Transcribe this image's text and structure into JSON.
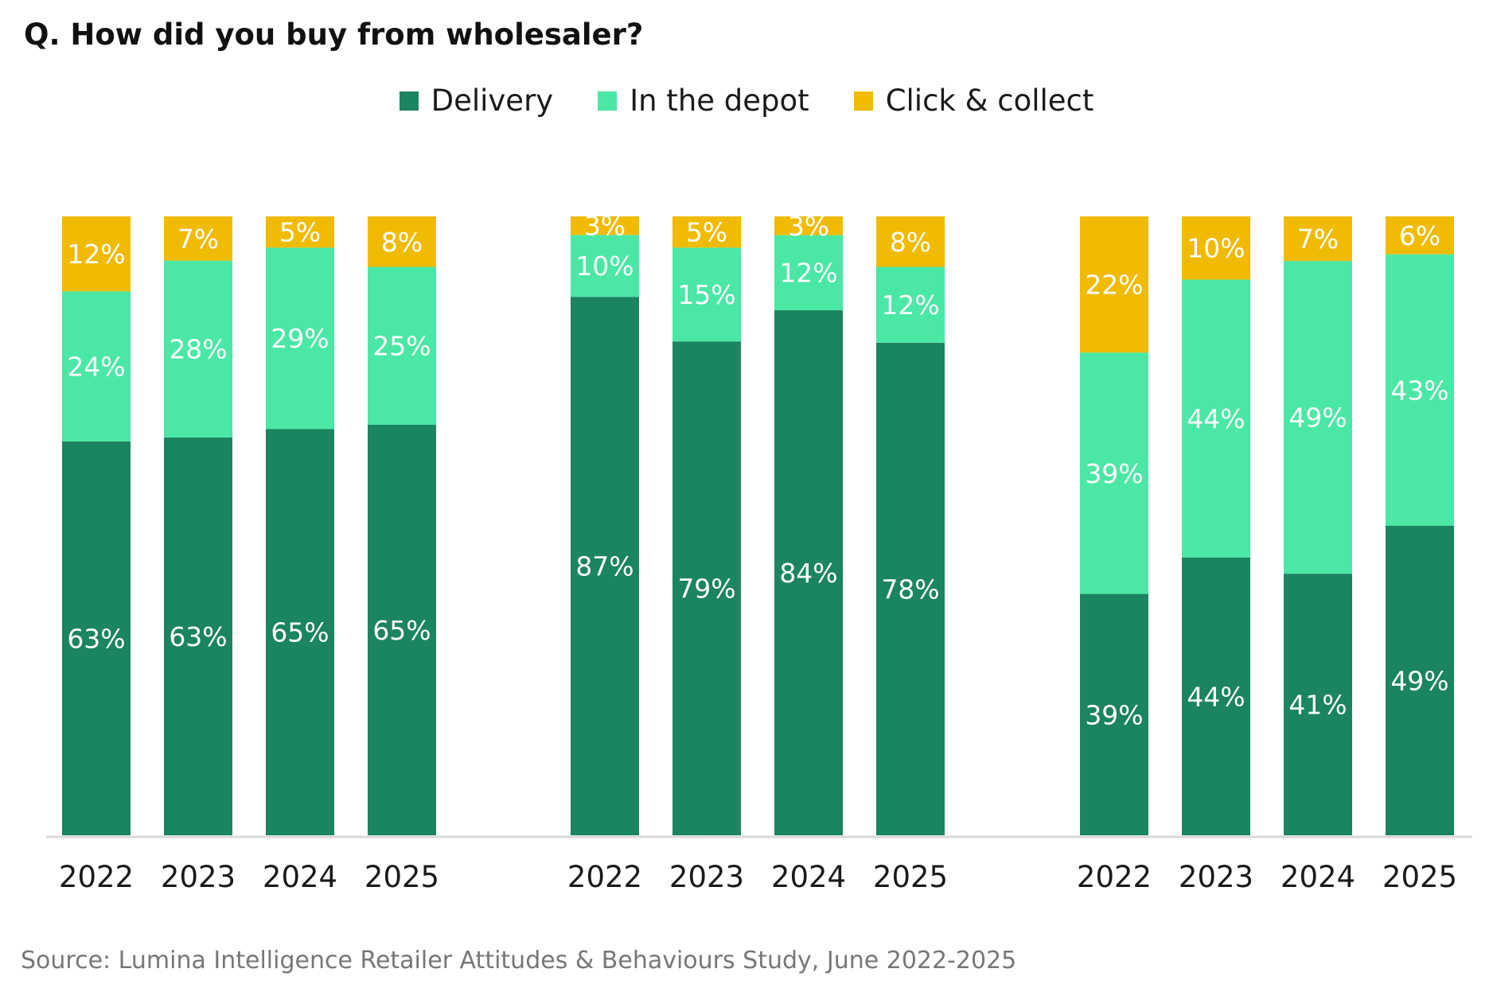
{
  "chart_data": {
    "type": "bar",
    "stacked": true,
    "title": "Q. How did you buy from wholesaler?",
    "source": "Source: Lumina Intelligence Retailer Attitudes & Behaviours Study, June 2022-2025",
    "legend_position": "top-center",
    "grid": false,
    "ylim": [
      0,
      100
    ],
    "unit": "%",
    "series": [
      {
        "name": "Delivery",
        "color": "#1b8460",
        "label_color": "#ffffff"
      },
      {
        "name": "In the depot",
        "color": "#4ae8a4",
        "label_color": "#ffffff"
      },
      {
        "name": "Click & collect",
        "color": "#f0bb02",
        "label_color": "#ffffff"
      }
    ],
    "groups": [
      {
        "categories": [
          "2022",
          "2023",
          "2024",
          "2025"
        ],
        "values": [
          [
            63,
            24,
            12
          ],
          [
            63,
            28,
            7
          ],
          [
            65,
            29,
            5
          ],
          [
            65,
            25,
            8
          ]
        ]
      },
      {
        "categories": [
          "2022",
          "2023",
          "2024",
          "2025"
        ],
        "values": [
          [
            87,
            10,
            3
          ],
          [
            79,
            15,
            5
          ],
          [
            84,
            12,
            3
          ],
          [
            78,
            12,
            8
          ]
        ]
      },
      {
        "categories": [
          "2022",
          "2023",
          "2024",
          "2025"
        ],
        "values": [
          [
            39,
            39,
            22
          ],
          [
            44,
            44,
            10
          ],
          [
            41,
            49,
            7
          ],
          [
            49,
            43,
            6
          ]
        ]
      }
    ]
  }
}
